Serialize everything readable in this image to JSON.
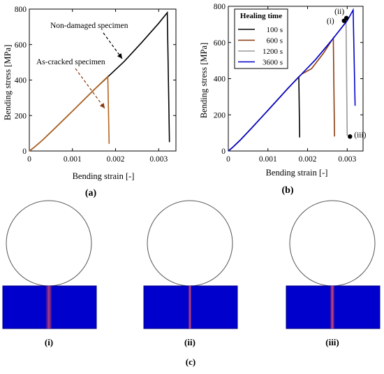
{
  "chart_data": [
    {
      "id": "a",
      "type": "line",
      "panel_label": "(a)",
      "xlabel": "Bending strain [-]",
      "ylabel": "Bending stress [MPa]",
      "xlim": [
        0,
        0.0034
      ],
      "ylim": [
        0,
        800
      ],
      "xticks": [
        0,
        0.001,
        0.002,
        0.003
      ],
      "xtick_labels": [
        "0",
        "0.001",
        "0.002",
        "0.003"
      ],
      "yticks": [
        0,
        200,
        400,
        600,
        800
      ],
      "ytick_labels": [
        "0",
        "200",
        "400",
        "600",
        "800"
      ],
      "grid": false,
      "series": [
        {
          "name": "Non-damaged specimen",
          "color": "#000000",
          "x": [
            0,
            0.0001,
            0.0003,
            0.0006,
            0.001,
            0.0015,
            0.00185,
            0.0022,
            0.0026,
            0.003,
            0.0032,
            0.00325
          ],
          "y": [
            0,
            18,
            60,
            130,
            225,
            345,
            425,
            505,
            610,
            720,
            780,
            50
          ]
        },
        {
          "name": "As-cracked specimen",
          "color": "#b5651d",
          "x": [
            0,
            0.0001,
            0.0003,
            0.0006,
            0.001,
            0.0015,
            0.00182,
            0.00185
          ],
          "y": [
            0,
            18,
            60,
            130,
            225,
            345,
            420,
            40
          ]
        }
      ],
      "annotations": [
        {
          "text": "Non-damaged specimen",
          "color": "#000000"
        },
        {
          "text": "As-cracked specimen",
          "color": "#8b3a0e"
        }
      ]
    },
    {
      "id": "b",
      "type": "line",
      "panel_label": "(b)",
      "xlabel": "Bending strain [-]",
      "ylabel": "Bending stress [MPa]",
      "xlim": [
        0,
        0.0034
      ],
      "ylim": [
        0,
        800
      ],
      "xticks": [
        0,
        0.001,
        0.002,
        0.003
      ],
      "xtick_labels": [
        "0",
        "0.001",
        "0.002",
        "0.003"
      ],
      "yticks": [
        0,
        200,
        400,
        600,
        800
      ],
      "ytick_labels": [
        "0",
        "200",
        "400",
        "600",
        "800"
      ],
      "grid": false,
      "legend": {
        "title": "Healing time",
        "placement": "top-left"
      },
      "series": [
        {
          "name": "100 s",
          "color": "#000000",
          "x": [
            0,
            0.0001,
            0.0003,
            0.0006,
            0.001,
            0.0015,
            0.00178,
            0.0018
          ],
          "y": [
            0,
            18,
            60,
            130,
            225,
            345,
            410,
            75
          ]
        },
        {
          "name": "600 s",
          "color": "#8b3a0e",
          "x": [
            0,
            0.0001,
            0.0003,
            0.0006,
            0.001,
            0.0015,
            0.00185,
            0.0021,
            0.0024,
            0.00265,
            0.00268
          ],
          "y": [
            0,
            18,
            60,
            130,
            225,
            345,
            425,
            455,
            540,
            625,
            80
          ]
        },
        {
          "name": "1200 s",
          "color": "#999999",
          "x": [
            0,
            0.0001,
            0.0003,
            0.0006,
            0.001,
            0.0015,
            0.00185,
            0.0022,
            0.0026,
            0.00297,
            0.003
          ],
          "y": [
            0,
            18,
            60,
            130,
            225,
            345,
            425,
            505,
            610,
            715,
            85
          ]
        },
        {
          "name": "3600 s",
          "color": "#0000cc",
          "x": [
            0,
            0.0001,
            0.0003,
            0.0006,
            0.001,
            0.0015,
            0.00185,
            0.0022,
            0.0026,
            0.003,
            0.00315,
            0.0032
          ],
          "y": [
            0,
            18,
            60,
            130,
            225,
            345,
            425,
            505,
            610,
            720,
            780,
            250
          ]
        }
      ],
      "markers": [
        {
          "label": "(i)",
          "x": 0.00292,
          "y": 720
        },
        {
          "label": "(ii)",
          "x": 0.00298,
          "y": 735
        },
        {
          "label": "(iii)",
          "x": 0.00307,
          "y": 80
        }
      ]
    }
  ],
  "panel_c": {
    "caption": "(c)",
    "snapshots": [
      {
        "label": "(i)"
      },
      {
        "label": "(ii)"
      },
      {
        "label": "(iii)"
      }
    ],
    "colors": {
      "block": "#0000cd",
      "block_edge": "#000080",
      "crack": "#a0306a",
      "circle": "#555555"
    }
  }
}
